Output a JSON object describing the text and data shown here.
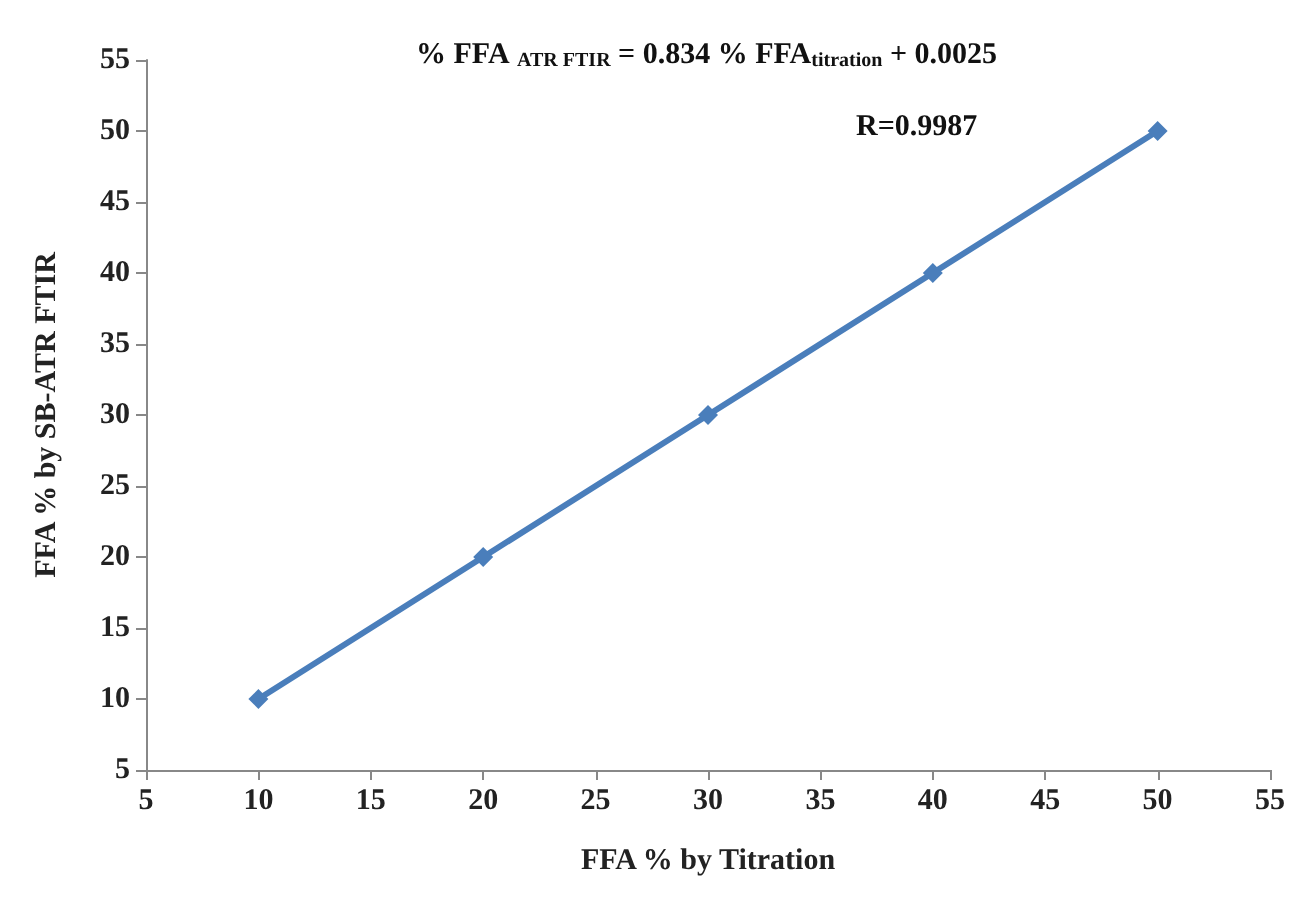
{
  "chart_data": {
    "type": "line",
    "xlabel": "FFA % by Titration",
    "ylabel": "FFA % by SB-ATR FTIR",
    "x": [
      10,
      20,
      30,
      40,
      50
    ],
    "series": [
      {
        "color": "#4a7ebb",
        "values": [
          10,
          20,
          30,
          40,
          50
        ]
      }
    ],
    "xlim": [
      5,
      55
    ],
    "xticks": [
      5,
      10,
      15,
      20,
      25,
      30,
      35,
      40,
      45,
      50,
      55
    ],
    "ylim": [
      5,
      55
    ],
    "yticks": [
      5,
      10,
      15,
      20,
      25,
      30,
      35,
      40,
      45,
      50,
      55
    ],
    "marker": "diamond",
    "line_style": "solid",
    "grid": false,
    "annotations": [
      "% FFA $_{ATR FTIR}$ = 0.834 % FFA$_{titration}$ + 0.0025",
      "R=0.9987"
    ]
  }
}
